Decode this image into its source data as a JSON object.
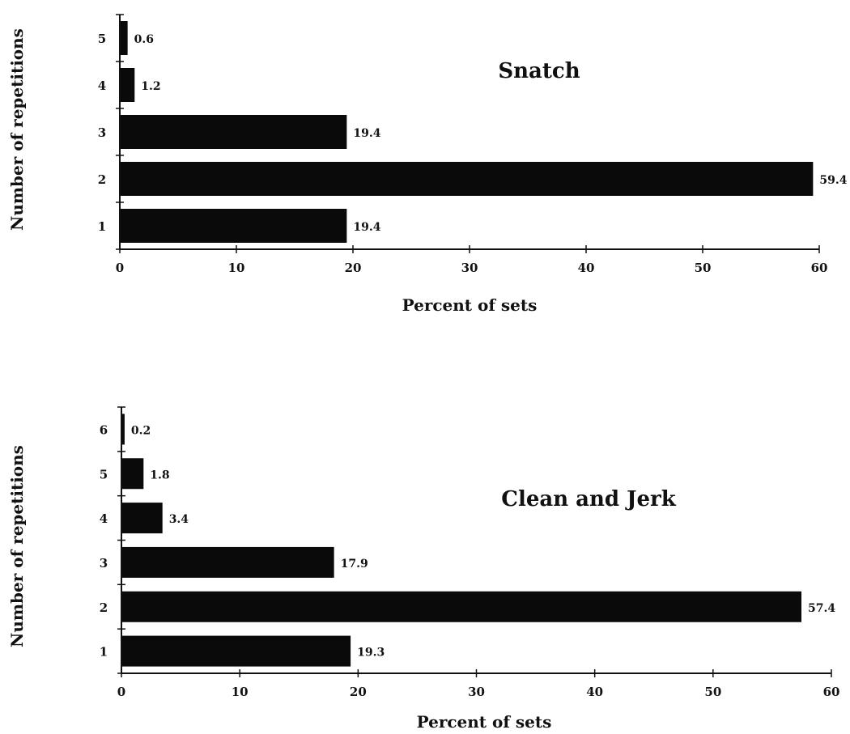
{
  "chart_data": [
    {
      "type": "bar",
      "orientation": "horizontal",
      "title": "Snatch",
      "xlabel": "Percent of sets",
      "ylabel": "Number of repetitions",
      "categories": [
        "1",
        "2",
        "3",
        "4",
        "5"
      ],
      "values": [
        19.4,
        59.4,
        19.4,
        1.2,
        0.6
      ],
      "value_labels": [
        "19.4",
        "59.4",
        "19.4",
        "1.2",
        "0.6"
      ],
      "xlim": [
        0,
        60
      ],
      "xticks": [
        "0",
        "10",
        "20",
        "30",
        "40",
        "50",
        "60"
      ],
      "grid": false,
      "bar_color": "#0a0a0a"
    },
    {
      "type": "bar",
      "orientation": "horizontal",
      "title": "Clean and Jerk",
      "xlabel": "Percent of sets",
      "ylabel": "Number of repetitions",
      "categories": [
        "1",
        "2",
        "3",
        "4",
        "5",
        "6"
      ],
      "values": [
        19.3,
        57.4,
        17.9,
        3.4,
        1.8,
        0.2
      ],
      "value_labels": [
        "19.3",
        "57.4",
        "17.9",
        "3.4",
        "1.8",
        "0.2"
      ],
      "xlim": [
        0,
        60
      ],
      "xticks": [
        "0",
        "10",
        "20",
        "30",
        "40",
        "50",
        "60"
      ],
      "grid": false,
      "bar_color": "#0a0a0a"
    }
  ]
}
